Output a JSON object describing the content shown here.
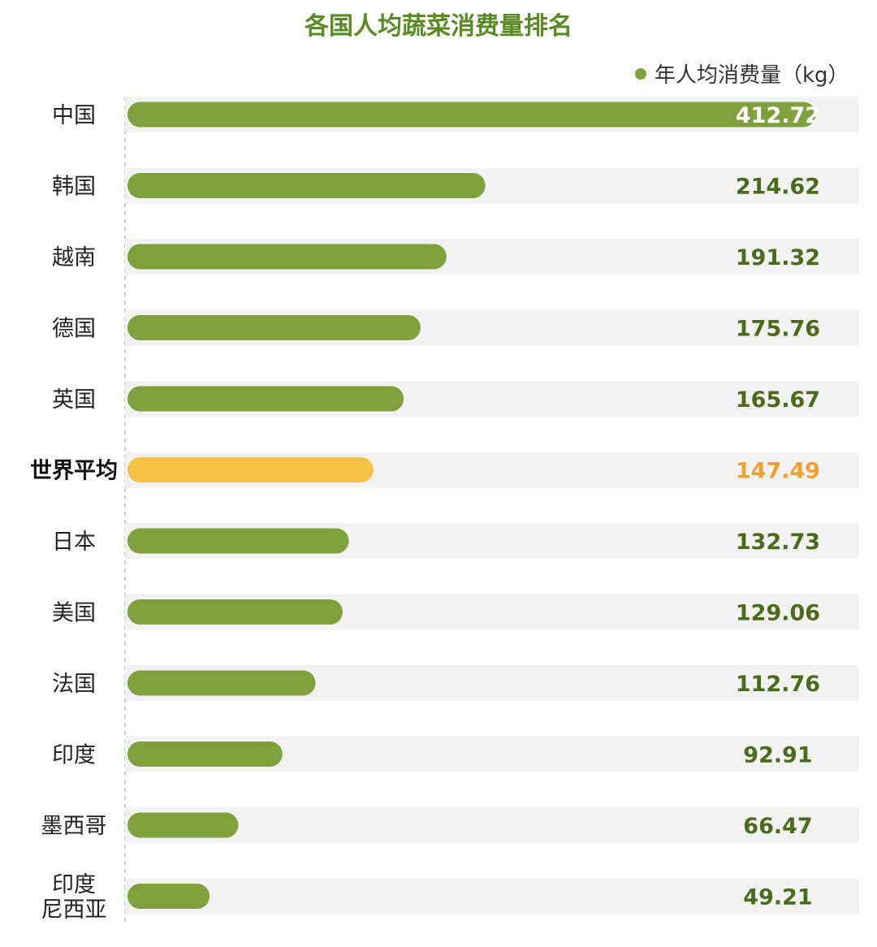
{
  "chart_data": {
    "type": "bar",
    "orientation": "horizontal",
    "title": "各国人均蔬菜消费量排名",
    "legend": {
      "position": "top-right",
      "entries": [
        {
          "label": "年人均消费量（kg）",
          "color": "#7fa03c"
        }
      ]
    },
    "series": [
      {
        "name": "年人均消费量（kg）",
        "values": [
          412.72,
          214.62,
          191.32,
          175.76,
          165.67,
          147.49,
          132.73,
          129.06,
          112.76,
          92.91,
          66.47,
          49.21
        ]
      }
    ],
    "categories": [
      {
        "lines": [
          "中国"
        ]
      },
      {
        "lines": [
          "韩国"
        ]
      },
      {
        "lines": [
          "越南"
        ]
      },
      {
        "lines": [
          "德国"
        ]
      },
      {
        "lines": [
          "英国"
        ]
      },
      {
        "lines": [
          "世界平均"
        ],
        "highlight": true
      },
      {
        "lines": [
          "日本"
        ]
      },
      {
        "lines": [
          "美国"
        ]
      },
      {
        "lines": [
          "法国"
        ]
      },
      {
        "lines": [
          "印度"
        ]
      },
      {
        "lines": [
          "墨西哥"
        ]
      },
      {
        "lines": [
          "印度",
          "尼西亚"
        ]
      }
    ],
    "value_labels": [
      "412.72",
      "214.62",
      "191.32",
      "175.76",
      "165.67",
      "147.49",
      "132.73",
      "129.06",
      "112.76",
      "92.91",
      "66.47",
      "49.21"
    ],
    "xlim": [
      0,
      430
    ],
    "grid": false,
    "colors": {
      "bar": "#7fa03c",
      "highlight_bar": "#f5c243",
      "highlight_value": "#f0a030",
      "value_text": "#4a6b1a",
      "inside_value_text": "#ffffff",
      "track": "#f2f2f2",
      "title": "#5a8a23",
      "label": "#222222",
      "axis_line": "#bbbbbb"
    }
  }
}
